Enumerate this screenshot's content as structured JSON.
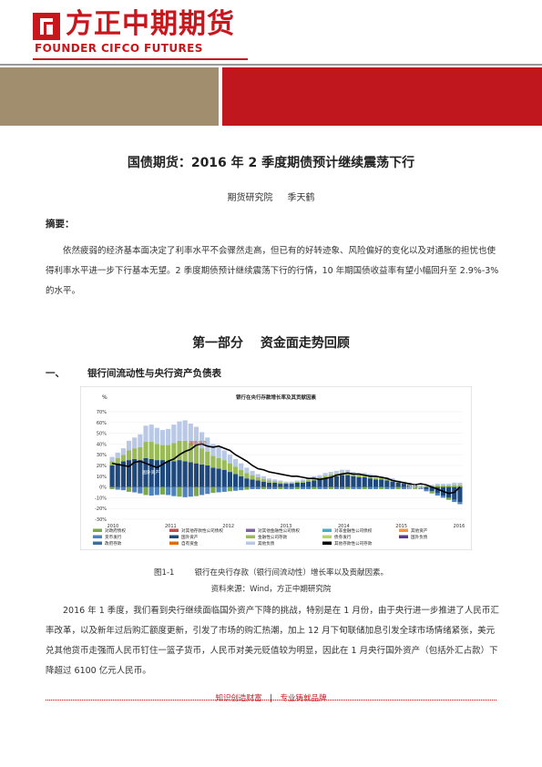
{
  "header": {
    "brand_cn": "方正中期期货",
    "brand_en": "FOUNDER CIFCO FUTURES"
  },
  "title": "国债期货：2016 年 2 季度期债预计继续震荡下行",
  "authors": {
    "institute": "期货研究院",
    "author": "季天鹤"
  },
  "abstract": {
    "label": "摘要：",
    "text": "依然疲弱的经济基本面决定了利率水平不会骤然走高，但已有的好转迹象、风险偏好的变化以及对通胀的担忧也使得利率水平进一步下行基本无望。2 季度期债预计继续震荡下行的行情，10 年期国债收益率有望小幅回升至 2.9%-3%的水平。"
  },
  "part_title": "第一部分　 资金面走势回顾",
  "section": {
    "num": "一、",
    "title": "银行间流动性与央行资产负债表"
  },
  "figure": {
    "caption_num": "图1-1",
    "caption_text": "银行在央行存款（银行间流动性）增长率以及贡献因素。",
    "source": "资料来源：Wind，方正中期研究院"
  },
  "chart_data": {
    "type": "bar",
    "title": "银行在央行存款增长率及其贡献因素",
    "ylabel": "%",
    "ylim": [
      -30,
      70
    ],
    "yticks": [
      "70%",
      "60%",
      "50%",
      "40%",
      "30%",
      "20%",
      "10%",
      "0%",
      "-10%",
      "-20%",
      "-30%"
    ],
    "x_ticks": [
      "2010",
      "2011",
      "2012",
      "2013",
      "2014",
      "2015",
      "2016"
    ],
    "annotations": [
      "国外资产",
      "国外资产",
      "国外资产"
    ],
    "legend": [
      {
        "name": "对政府债权",
        "color": "#7aa84a"
      },
      {
        "name": "对其他存款性公司债权",
        "color": "#c0504d"
      },
      {
        "name": "对其他金融性公司债权",
        "color": "#8064a2"
      },
      {
        "name": "对非金融性公司债权",
        "color": "#4bacc6"
      },
      {
        "name": "其他资产",
        "color": "#f79646"
      },
      {
        "name": "货币发行",
        "color": "#4f81bd"
      },
      {
        "name": "国外资产",
        "color": "#1f497d"
      },
      {
        "name": "金融性公司存款",
        "color": "#9bbb59"
      },
      {
        "name": "债券发行",
        "color": "#b4d36b"
      },
      {
        "name": "国外负债",
        "color": "#5b3a8c"
      },
      {
        "name": "政府存款",
        "color": "#3c6e9f"
      },
      {
        "name": "自有资金",
        "color": "#e36c09"
      },
      {
        "name": "其他负债",
        "color": "#b8c8e6"
      },
      {
        "name": "其他存款性公司存款",
        "color": "#000000"
      }
    ],
    "series_total": [
      22,
      21,
      20,
      19,
      23,
      24,
      22,
      20,
      18,
      21,
      24,
      26,
      30,
      33,
      35,
      39,
      40,
      38,
      37,
      38,
      36,
      34,
      30,
      27,
      24,
      20,
      17,
      16,
      14,
      13,
      12,
      11,
      10,
      10,
      9,
      8,
      8,
      7,
      8,
      9,
      11,
      12,
      13,
      12,
      12,
      11,
      10,
      10,
      9,
      8,
      6,
      5,
      4,
      3,
      2,
      3,
      2,
      0,
      -2,
      -4,
      -6,
      -5,
      0
    ],
    "series_foreign": [
      20,
      22,
      24,
      25,
      26,
      25,
      27,
      26,
      25,
      25,
      24,
      24,
      25,
      24,
      23,
      22,
      21,
      20,
      18,
      17,
      16,
      14,
      12,
      10,
      8,
      7,
      6,
      5,
      4,
      4,
      3,
      3,
      3,
      4,
      4,
      5,
      6,
      7,
      8,
      9,
      10,
      11,
      11,
      10,
      9,
      9,
      8,
      7,
      7,
      6,
      5,
      4,
      3,
      2,
      1,
      0,
      -2,
      -4,
      -6,
      -8,
      -10,
      -12,
      -14
    ],
    "series_other": [
      8,
      10,
      12,
      18,
      20,
      24,
      30,
      32,
      30,
      28,
      30,
      34,
      36,
      38,
      36,
      34,
      30,
      26,
      22,
      20,
      18,
      16,
      14,
      12,
      10,
      8,
      6,
      5,
      4,
      3,
      3,
      2,
      2,
      2,
      3,
      3,
      4,
      4,
      5,
      5,
      5,
      5,
      5,
      4,
      4,
      4,
      4,
      3,
      3,
      3,
      3,
      2,
      2,
      2,
      2,
      2,
      2,
      2,
      3,
      3,
      3,
      4,
      4
    ]
  },
  "body_text": "2016 年 1 季度，我们看到央行继续面临国外资产下降的挑战，特别是在 1 月份，由于央行进一步推进了人民币汇率改革，以及新年过后购汇额度更新，引发了市场的购汇热潮，加上 12 月下旬联储加息引发全球市场情绪紧张，美元兑其他货币走强而人民币钉住一篮子货币，人民币对美元贬值较为明显，因此在 1 月央行国外资产（包括外汇占款）下降超过 6100 亿元人民币。",
  "footer": {
    "left": "知识创造财富",
    "sep": "|",
    "right": "专业铸就品牌"
  }
}
